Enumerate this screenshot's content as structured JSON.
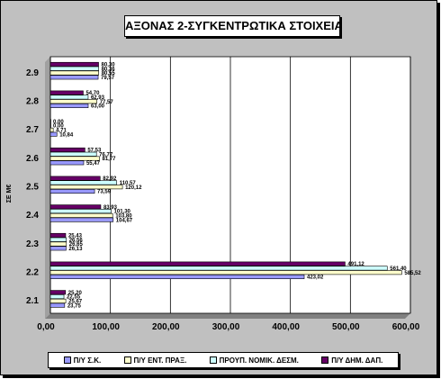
{
  "chart_data": {
    "type": "bar",
    "orientation": "horizontal",
    "title": "ΑΞΟΝΑΣ 2-ΣΥΓΚΕΝΤΡΩΤΙΚΑ ΣΤΟΙΧΕΙΑ",
    "ylabel": "ΣΕ Μ€",
    "xlabel": "",
    "categories": [
      "2.1",
      "2.2",
      "2.3",
      "2.4",
      "2.5",
      "2.6",
      "2.7",
      "2.8",
      "2.9"
    ],
    "xlim": [
      0,
      600
    ],
    "xticks": [
      "0,00",
      "100,00",
      "200,00",
      "300,00",
      "400,00",
      "500,00",
      "600,00"
    ],
    "grid": true,
    "legend_position": "bottom",
    "series": [
      {
        "name": "Π/Υ Σ.Κ.",
        "color": "#9999ff",
        "values": [
          23.75,
          423.02,
          26.13,
          104.67,
          73.59,
          55.47,
          10.84,
          63.0,
          79.57
        ],
        "labels": [
          "23,75",
          "423,02",
          "26,13",
          "104,67",
          "73,59",
          "55,47",
          "10,84",
          "63,00",
          "79,57"
        ]
      },
      {
        "name": "Π/Υ ΕΝΤ. ΠΡΑΞ.",
        "color": "#ffffcc",
        "values": [
          25.67,
          585.52,
          26.65,
          103.8,
          120.12,
          81.77,
          4.71,
          77.57,
          80.55
        ],
        "labels": [
          "25,67",
          "585,52",
          "26,65",
          "103,80",
          "120,12",
          "81,77",
          "4,71",
          "77,57",
          "80,55"
        ]
      },
      {
        "name": "ΠΡΟΥΠ. ΝΟΜΙΚ. ΔΕΣΜ.",
        "color": "#ccffff",
        "values": [
          22.55,
          561.4,
          26.56,
          101.3,
          110.57,
          76.77,
          0.0,
          62.93,
          80.36
        ],
        "labels": [
          "22,55",
          "561,40",
          "26,56",
          "101,30",
          "110,57",
          "76,77",
          "0,00",
          "62,93",
          "80,36"
        ]
      },
      {
        "name": "Π/Υ ΔΗΜ. ΔΑΠ.",
        "color": "#660066",
        "values": [
          25.2,
          491.12,
          25.43,
          83.93,
          82.92,
          57.53,
          0.0,
          54.7,
          80.3
        ],
        "labels": [
          "25,20",
          "491,12",
          "25,43",
          "83,93",
          "82,92",
          "57,53",
          "0,00",
          "54,70",
          "80,30"
        ]
      }
    ]
  }
}
